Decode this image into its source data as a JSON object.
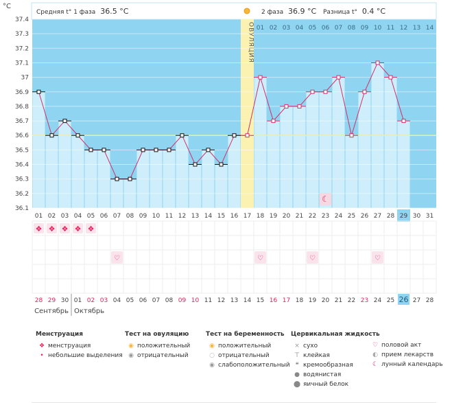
{
  "chart_data": {
    "type": "line",
    "title": "",
    "ylabel": "°C",
    "ylim": [
      36.1,
      37.4
    ],
    "yticks": [
      "36.1",
      "36.2",
      "36.3",
      "36.4",
      "36.5",
      "36.6",
      "36.7",
      "36.8",
      "36.9",
      "37",
      "37.1",
      "37.2",
      "37.3",
      "37.4"
    ],
    "coverline": 36.6,
    "ovulation_label": "ОВУЛЯЦИЯ",
    "ovulation_day_index": 16,
    "header": {
      "phase1_text": "Средняя t° 1 фаза",
      "phase1_value": "36.5 °C",
      "phase2_text": "2 фаза",
      "phase2_value": "36.9 °C",
      "diff_text": "Разница t°",
      "diff_value": "0.4 °C"
    },
    "cycle_days": [
      "01",
      "02",
      "03",
      "04",
      "05",
      "06",
      "07",
      "08",
      "09",
      "10",
      "11",
      "12",
      "13",
      "14",
      "15",
      "16",
      "17",
      "18",
      "19",
      "20",
      "21",
      "22",
      "23",
      "24",
      "25",
      "26",
      "27",
      "28",
      "29",
      "30",
      "31"
    ],
    "top_days": [
      "01",
      "02",
      "03",
      "04",
      "05",
      "06",
      "07",
      "08",
      "09",
      "10",
      "11",
      "12",
      "13",
      "14"
    ],
    "temperatures": [
      36.9,
      36.6,
      36.7,
      36.6,
      36.5,
      36.5,
      36.3,
      36.3,
      36.5,
      36.5,
      36.5,
      36.6,
      36.4,
      36.5,
      36.4,
      36.6,
      36.6,
      37.0,
      36.7,
      36.8,
      36.8,
      36.9,
      36.9,
      37.0,
      36.6,
      36.9,
      37.1,
      37.0,
      36.7,
      null,
      null
    ],
    "highlighted_cycle_day": "29",
    "calendar_dates": [
      "28",
      "29",
      "30",
      "01",
      "02",
      "03",
      "04",
      "05",
      "06",
      "07",
      "08",
      "09",
      "10",
      "11",
      "12",
      "13",
      "14",
      "15",
      "16",
      "17",
      "18",
      "19",
      "20",
      "21",
      "22",
      "23",
      "24",
      "25",
      "26",
      "27",
      "28"
    ],
    "red_date_indexes": [
      0,
      1,
      4,
      5,
      11,
      12,
      18,
      19,
      25
    ],
    "today_date_index": 28,
    "months": [
      "Сентябрь",
      "Октябрь"
    ],
    "menstruation_days": [
      0,
      1,
      2,
      3,
      4
    ],
    "intercourse_days": [
      6,
      17,
      21,
      26
    ],
    "moon_day_index": 22,
    "colors": {
      "bar": "#cdeefa",
      "bg": "#8fd4f0",
      "line": "#d0306a",
      "ovulation": "#fbf1b0",
      "today": "#8fd4f0",
      "red": "#e8215c"
    }
  },
  "legend": {
    "menstruation": {
      "title": "Менструация",
      "items": [
        "менструация",
        "небольшие выделения"
      ]
    },
    "ovulation_test": {
      "title": "Тест на овуляцию",
      "items": [
        "положительный",
        "отрицательный"
      ]
    },
    "pregnancy_test": {
      "title": "Тест на беременность",
      "items": [
        "положительный",
        "отрицательный",
        "слабоположительный"
      ]
    },
    "cervical": {
      "title": "Цервикальная жидкость",
      "items": [
        "сухо",
        "клейкая",
        "кремообразная",
        "водянистая",
        "яичный белок"
      ]
    },
    "other": {
      "items": [
        "половой акт",
        "прием лекарств",
        "лунный календарь"
      ]
    }
  }
}
